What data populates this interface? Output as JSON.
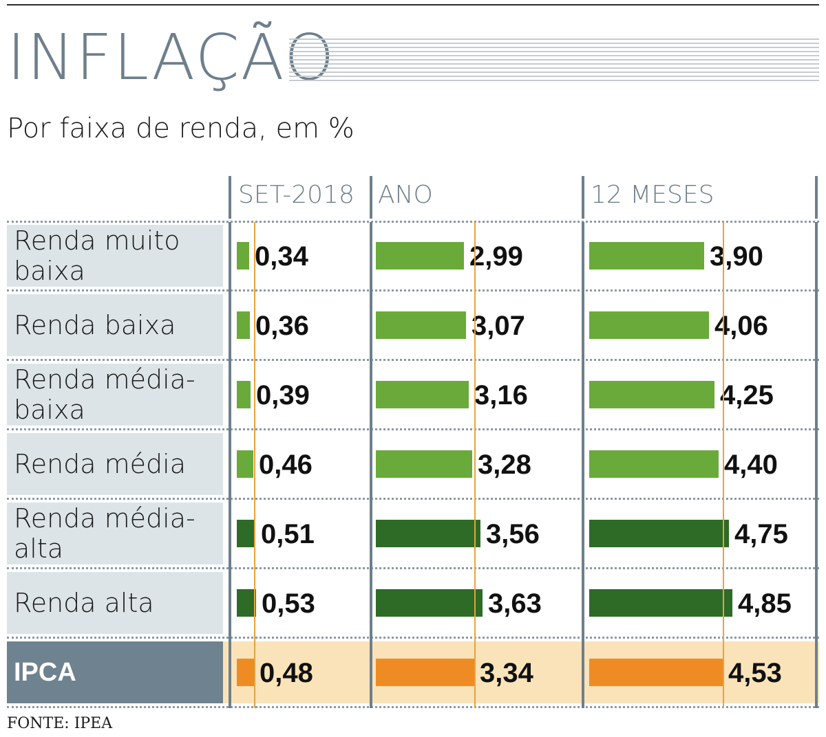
{
  "title": "INFLAÇÃO",
  "subtitle": "Por faixa de renda, em %",
  "source": "FONTE: IPEA",
  "colors": {
    "light_green": "#6aaa3a",
    "dark_green": "#2d6b27",
    "orange": "#ee8c23",
    "ipca_row": "#fbe3b9",
    "label_bg": "#dde4e7",
    "ipca_label_bg": "#6e8290",
    "accent_gray": "#6e7f8c"
  },
  "chart_data": {
    "type": "bar",
    "orientation": "horizontal",
    "columns": [
      "SET-2018",
      "ANO",
      "12 MESES"
    ],
    "rows": [
      {
        "label": "Renda muito baixa",
        "values": [
          0.34,
          2.99,
          3.9
        ],
        "display": [
          "0,34",
          "2,99",
          "3,90"
        ],
        "color": "light_green"
      },
      {
        "label": "Renda baixa",
        "values": [
          0.36,
          3.07,
          4.06
        ],
        "display": [
          "0,36",
          "3,07",
          "4,06"
        ],
        "color": "light_green"
      },
      {
        "label": "Renda média-baixa",
        "values": [
          0.39,
          3.16,
          4.25
        ],
        "display": [
          "0,39",
          "3,16",
          "4,25"
        ],
        "color": "light_green"
      },
      {
        "label": "Renda média",
        "values": [
          0.46,
          3.28,
          4.4
        ],
        "display": [
          "0,46",
          "3,28",
          "4,40"
        ],
        "color": "light_green"
      },
      {
        "label": "Renda média-alta",
        "values": [
          0.51,
          3.56,
          4.75
        ],
        "display": [
          "0,51",
          "3,56",
          "4,75"
        ],
        "color": "dark_green"
      },
      {
        "label": "Renda alta",
        "values": [
          0.53,
          3.63,
          4.85
        ],
        "display": [
          "0,53",
          "3,63",
          "4,85"
        ],
        "color": "dark_green"
      },
      {
        "label": "IPCA",
        "values": [
          0.48,
          3.34,
          4.53
        ],
        "display": [
          "0,48",
          "3,34",
          "4,53"
        ],
        "color": "orange",
        "highlight": true
      }
    ],
    "reference_line": "IPCA"
  }
}
